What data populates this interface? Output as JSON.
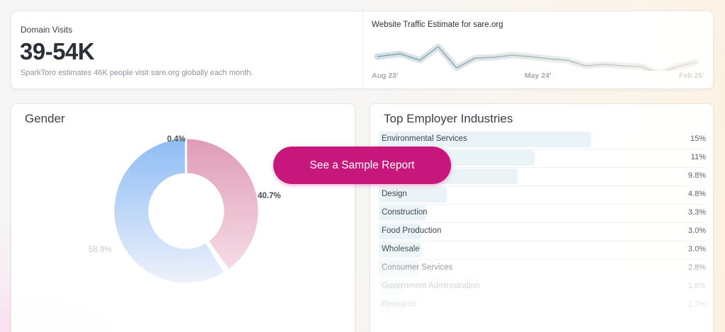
{
  "domain_visits": {
    "title": "Domain Visits",
    "value": "39-54K",
    "description": "SparkToro estimates 46K people visit sare.org globally each month."
  },
  "traffic": {
    "title": "Website Traffic Estimate for sare.org",
    "axis_labels": [
      "Aug 23'",
      "May 24'",
      "Feb 25'"
    ]
  },
  "gender": {
    "title": "Gender",
    "segments": [
      {
        "label": "0.4%",
        "value": 0.4,
        "color": "#7fb3c0"
      },
      {
        "label": "40.7%",
        "value": 40.7,
        "color": "#e3a1bb"
      },
      {
        "label": "58.9%",
        "value": 58.9,
        "color": "#9cc4f5"
      }
    ]
  },
  "industries": {
    "title": "Top Employer Industries",
    "items": [
      {
        "name": "Environmental Services",
        "value": "15%",
        "pct": 15
      },
      {
        "name": "",
        "value": "11%",
        "pct": 11
      },
      {
        "name": "",
        "value": "9.8%",
        "pct": 9.8
      },
      {
        "name": "Design",
        "value": "4.8%",
        "pct": 4.8
      },
      {
        "name": "Construction",
        "value": "3.3%",
        "pct": 3.3
      },
      {
        "name": "Food Production",
        "value": "3.0%",
        "pct": 3.0
      },
      {
        "name": "Wholesale",
        "value": "3.0%",
        "pct": 3.0
      },
      {
        "name": "Consumer Services",
        "value": "2.8%",
        "pct": 2.8
      },
      {
        "name": "Government Administration",
        "value": "1.8%",
        "pct": 1.8
      },
      {
        "name": "Research",
        "value": "1.7%",
        "pct": 1.7
      }
    ]
  },
  "cta": {
    "label": "See a Sample Report"
  }
}
